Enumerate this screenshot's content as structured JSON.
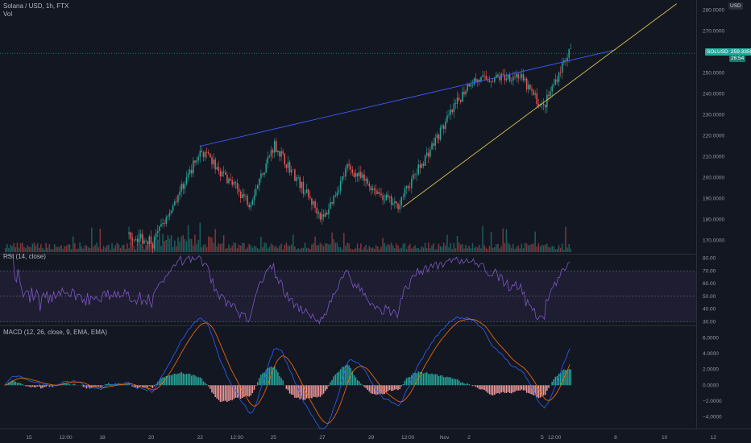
{
  "header": {
    "symbol": "Solana / USD, 1h, FTX",
    "volume_label": "Vol",
    "rsi_label": "RSI (14, close)",
    "macd_label": "MACD (12, 26, close, 9, EMA, EMA)"
  },
  "price_scale": {
    "currency": "USD"
  },
  "last_price": {
    "value": "259.3350",
    "symbol": "SOLUSD",
    "countdown": "26:54"
  },
  "chart_data": [
    {
      "type": "candlestick",
      "symbol": "SOLUSD",
      "interval": "1h",
      "y_ticks": [
        "170.0000",
        "180.0000",
        "190.0000",
        "200.0000",
        "210.0000",
        "220.0000",
        "230.0000",
        "240.0000",
        "250.0000",
        "270.0000",
        "280.0000"
      ],
      "ylim": [
        166,
        284
      ],
      "x_ticks": [
        "15",
        "12:00",
        "18",
        "20",
        "22",
        "12:00",
        "25",
        "27",
        "29",
        "12:00",
        "Nov",
        "2",
        "5",
        "12:00",
        "8",
        "10",
        "12"
      ],
      "key_points": [
        {
          "x": "20",
          "y": 168
        },
        {
          "x": "22",
          "y": 213
        },
        {
          "x": "24",
          "y": 188
        },
        {
          "x": "25",
          "y": 216
        },
        {
          "x": "27",
          "y": 180
        },
        {
          "x": "28",
          "y": 205
        },
        {
          "x": "30",
          "y": 186
        },
        {
          "x": "31",
          "y": 206
        },
        {
          "x": "Nov 2",
          "y": 246
        },
        {
          "x": "Nov 4",
          "y": 249
        },
        {
          "x": "Nov 5",
          "y": 233
        },
        {
          "x": "Nov 6",
          "y": 259.335
        }
      ],
      "trendlines": [
        {
          "color": "#3d5afe",
          "from": {
            "x": "22",
            "y": 215
          },
          "to": {
            "x": "Nov 8",
            "y": 261
          }
        },
        {
          "color": "#d4c24c",
          "from": {
            "x": "30",
            "y": 186
          },
          "to": {
            "x": "Nov 10",
            "y": 283
          }
        }
      ],
      "colors": {
        "up": "#26a69a",
        "down": "#ef5350"
      }
    },
    {
      "type": "line",
      "name": "RSI (14, close)",
      "y_ticks": [
        "80.00",
        "70.00",
        "60.00",
        "50.00",
        "40.00",
        "30.00"
      ],
      "ylim": [
        27,
        83
      ],
      "levels": [
        70,
        50,
        30
      ],
      "color": "#7e57c2"
    },
    {
      "type": "line",
      "name": "MACD (12, 26, close, 9, EMA, EMA)",
      "y_ticks": [
        "6.0000",
        "4.0000",
        "2.0000",
        "0.0000",
        "−2.0000",
        "−4.0000"
      ],
      "ylim": [
        -5.5,
        7.5
      ],
      "colors": {
        "macd": "#2962ff",
        "signal": "#ff6d00",
        "hist_up": "#26a69a",
        "hist_down": "#ef9a9a"
      }
    }
  ]
}
